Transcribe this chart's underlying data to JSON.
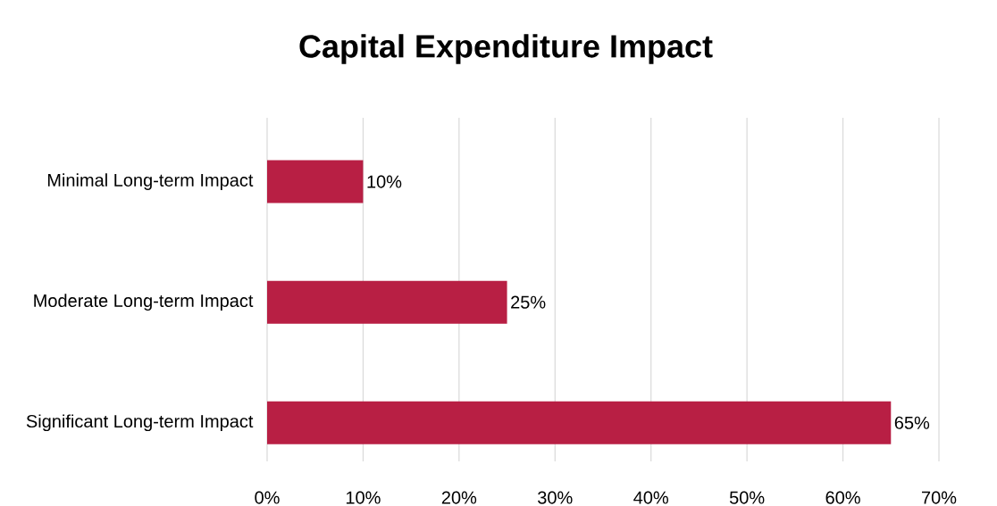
{
  "chart_data": {
    "type": "bar",
    "orientation": "horizontal",
    "title": "Capital Expenditure Impact",
    "categories": [
      "Minimal Long-term Impact",
      "Moderate Long-term Impact",
      "Significant Long-term Impact"
    ],
    "values": [
      10,
      25,
      65
    ],
    "value_labels": [
      "10%",
      "25%",
      "65%"
    ],
    "color": "#b81f44",
    "xlim": [
      0,
      70
    ],
    "xticks": [
      {
        "value": 0,
        "label": "0%"
      },
      {
        "value": 10,
        "label": "10%"
      },
      {
        "value": 20,
        "label": "20%"
      },
      {
        "value": 30,
        "label": "30%"
      },
      {
        "value": 40,
        "label": "40%"
      },
      {
        "value": 50,
        "label": "50%"
      },
      {
        "value": 60,
        "label": "60%"
      },
      {
        "value": 70,
        "label": "70%"
      }
    ],
    "grid": "x"
  }
}
